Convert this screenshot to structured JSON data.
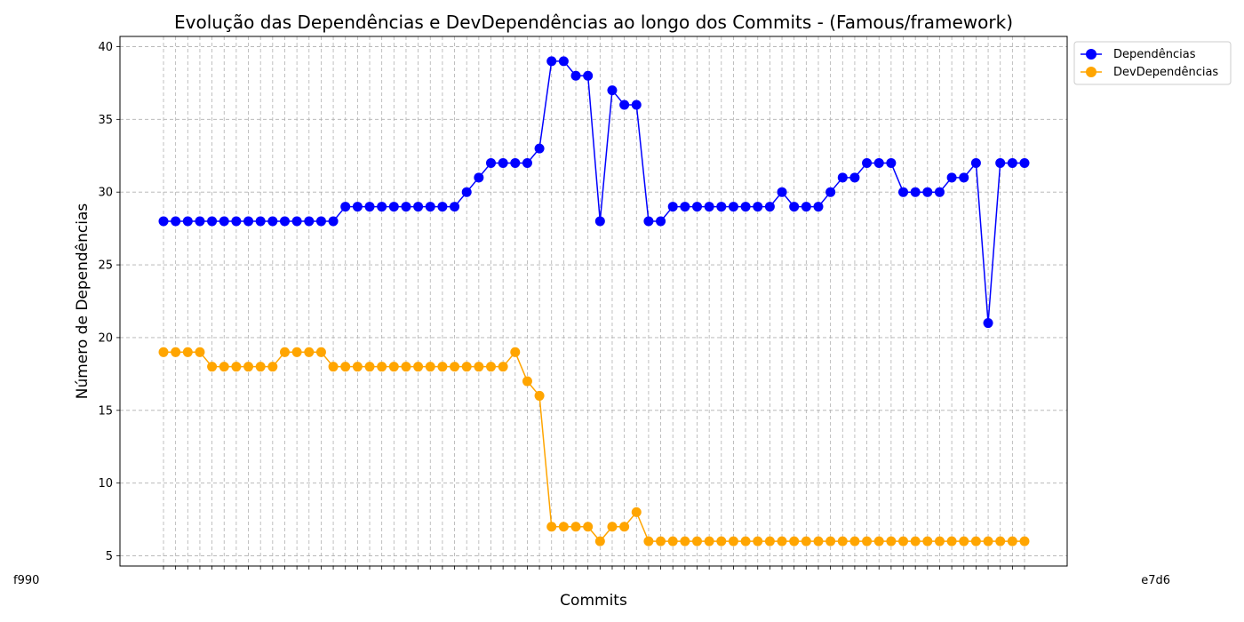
{
  "chart_data": {
    "type": "line",
    "title": "Evolução das Dependências e DevDependências ao longo dos Commits - (Famous/framework)",
    "xlabel": "Commits",
    "ylabel": "Número de Dependências",
    "ylim": [
      4.3,
      40.7
    ],
    "yticks": [
      5,
      10,
      15,
      20,
      25,
      30,
      35,
      40
    ],
    "grid": true,
    "legend_position": "top-right-outside",
    "x_tick_labels": {
      "first": "f990",
      "last": "e7d6"
    },
    "series": [
      {
        "name": "Dependências",
        "color": "#0000ff",
        "values": [
          28,
          28,
          28,
          28,
          28,
          28,
          28,
          28,
          28,
          28,
          28,
          28,
          28,
          28,
          28,
          29,
          29,
          29,
          29,
          29,
          29,
          29,
          29,
          29,
          29,
          30,
          31,
          32,
          32,
          32,
          32,
          33,
          39,
          39,
          38,
          38,
          28,
          37,
          36,
          36,
          28,
          28,
          29,
          29,
          29,
          29,
          29,
          29,
          29,
          29,
          29,
          30,
          29,
          29,
          29,
          30,
          31,
          31,
          32,
          32,
          32,
          30,
          30,
          30,
          30,
          31,
          31,
          32,
          21,
          32,
          32,
          32
        ]
      },
      {
        "name": "DevDependências",
        "color": "#ffa500",
        "values": [
          19,
          19,
          19,
          19,
          18,
          18,
          18,
          18,
          18,
          18,
          19,
          19,
          19,
          19,
          18,
          18,
          18,
          18,
          18,
          18,
          18,
          18,
          18,
          18,
          18,
          18,
          18,
          18,
          18,
          19,
          17,
          16,
          7,
          7,
          7,
          7,
          6,
          7,
          7,
          8,
          6,
          6,
          6,
          6,
          6,
          6,
          6,
          6,
          6,
          6,
          6,
          6,
          6,
          6,
          6,
          6,
          6,
          6,
          6,
          6,
          6,
          6,
          6,
          6,
          6,
          6,
          6,
          6,
          6,
          6,
          6,
          6
        ]
      }
    ]
  }
}
